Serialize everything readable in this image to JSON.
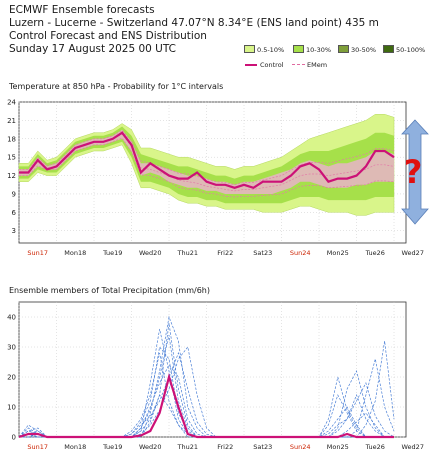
{
  "header": {
    "line1": "ECMWF Ensemble forecasts",
    "line2": "Luzern - Lucerne - Switzerland 47.07°N 8.34°E (ENS land point) 435 m",
    "line3": "Control Forecast and ENS Distribution",
    "line4": "Sunday 17 August 2025 00 UTC"
  },
  "legend": {
    "bands": [
      {
        "label": "0.5-10%",
        "color": "#d9f58a"
      },
      {
        "label": "10-30%",
        "color": "#a6e04a"
      },
      {
        "label": "30-50%",
        "color": "#7f9f3a"
      },
      {
        "label": "50-100%",
        "color": "#3f6a10"
      }
    ],
    "control": {
      "label": "Control",
      "color": "#cc1177"
    },
    "emem": {
      "label": "EMem",
      "color": "#e06aa0"
    }
  },
  "colors": {
    "control": "#cc1177",
    "temp_member": "#e37aa8",
    "precip_member": "#4a7fd6",
    "weekend": "#cc2200",
    "annotation_arrow": "#8fb0de",
    "annotation_q": "#e01010"
  },
  "chart_data": [
    {
      "type": "area",
      "title": "Temperature at 850 hPa - Probability for 1°C intervals",
      "ylim": [
        1,
        24
      ],
      "yticks": [
        3,
        6,
        9,
        12,
        15,
        18,
        21,
        24
      ],
      "xlim": [
        0,
        10
      ],
      "xticks": [
        {
          "x": 0.5,
          "label": "Sun17",
          "weekend": true
        },
        {
          "x": 1.5,
          "label": "Mon18",
          "weekend": false
        },
        {
          "x": 2.5,
          "label": "Tue19",
          "weekend": false
        },
        {
          "x": 3.5,
          "label": "Wed20",
          "weekend": false
        },
        {
          "x": 4.5,
          "label": "Thu21",
          "weekend": false
        },
        {
          "x": 5.5,
          "label": "Fri22",
          "weekend": false
        },
        {
          "x": 6.5,
          "label": "Sat23",
          "weekend": false
        },
        {
          "x": 7.5,
          "label": "Sun24",
          "weekend": true
        },
        {
          "x": 8.5,
          "label": "Mon25",
          "weekend": false
        },
        {
          "x": 9.5,
          "label": "Tue26",
          "weekend": false
        },
        {
          "x": 10.5,
          "label": "Wed27",
          "weekend": false
        }
      ],
      "x": [
        0,
        0.25,
        0.5,
        0.75,
        1,
        1.25,
        1.5,
        1.75,
        2,
        2.25,
        2.5,
        2.75,
        3,
        3.25,
        3.5,
        3.75,
        4,
        4.25,
        4.5,
        4.75,
        5,
        5.25,
        5.5,
        5.75,
        6,
        6.25,
        6.5,
        6.75,
        7,
        7.25,
        7.5,
        7.75,
        8,
        8.25,
        8.5,
        8.75,
        9,
        9.25,
        9.5,
        9.75,
        10
      ],
      "control": [
        12.5,
        12.5,
        14.5,
        13,
        13.5,
        15,
        16.5,
        17,
        17.5,
        17.5,
        18,
        19,
        17,
        12.5,
        14,
        13,
        12,
        11.5,
        11.5,
        12.5,
        11,
        10.5,
        10.5,
        10,
        10.5,
        10,
        11,
        11,
        11,
        12,
        13.5,
        14,
        13,
        11,
        11.5,
        11.5,
        12,
        13.5,
        16,
        16,
        15
      ],
      "band_outer_low": [
        11,
        11,
        12.5,
        12,
        12,
        13.5,
        15,
        15.5,
        16,
        16,
        16.5,
        17,
        14,
        10,
        10,
        9.5,
        9,
        8,
        7.5,
        7.5,
        7,
        7,
        6.5,
        6.5,
        6.5,
        6.5,
        6,
        6,
        6,
        6.5,
        7,
        7,
        6.5,
        6,
        6,
        6,
        5.5,
        5.5,
        6,
        6,
        6
      ],
      "band_outer_high": [
        14,
        14,
        16,
        14.5,
        15,
        16.5,
        18,
        18.5,
        19,
        19,
        19.5,
        20.5,
        19.5,
        16.5,
        16.5,
        16,
        15.5,
        15,
        15,
        14.5,
        14,
        13.5,
        13.5,
        13,
        13.5,
        13.5,
        14,
        14.5,
        15,
        16,
        17,
        18,
        18.5,
        19,
        19.5,
        20,
        20.5,
        21,
        22,
        22,
        21.5
      ],
      "band_mid_low": [
        11.5,
        11.5,
        13,
        12.5,
        12.5,
        14,
        15.5,
        16,
        16.5,
        16.5,
        17,
        17.5,
        15,
        11,
        11,
        10.5,
        10,
        9,
        8.5,
        8.5,
        8,
        8,
        7.5,
        7.5,
        7.5,
        7.5,
        7.5,
        7.5,
        7.5,
        8,
        8.5,
        8.5,
        8.5,
        8,
        8,
        8,
        8,
        8,
        8.5,
        8.5,
        8.5
      ],
      "band_mid_high": [
        13.5,
        13.5,
        15.5,
        14,
        14.5,
        16,
        17.5,
        18,
        18.5,
        18.5,
        19,
        20,
        18.5,
        15.5,
        15,
        14.5,
        14,
        13.5,
        13.5,
        13,
        12.5,
        12,
        12,
        11.5,
        12,
        12,
        12.5,
        13,
        13.5,
        14.5,
        15.5,
        16,
        16,
        16,
        16.5,
        17,
        17.5,
        18,
        19,
        19,
        18.5
      ],
      "band_core_low": [
        12,
        12,
        13.5,
        13,
        13,
        14.5,
        16,
        16.5,
        17,
        17,
        17.5,
        18,
        16,
        12,
        12.5,
        12,
        11,
        10.5,
        10,
        10,
        9.5,
        9.5,
        9,
        9,
        9,
        9,
        9,
        9,
        9.5,
        10,
        11,
        11,
        10.5,
        10,
        10,
        10,
        10.5,
        10.5,
        11,
        11,
        11
      ],
      "band_core_high": [
        13,
        13,
        15,
        13.5,
        14,
        15.5,
        17,
        17.5,
        18,
        18,
        18.5,
        19.5,
        17.5,
        14,
        14,
        13.5,
        13,
        12.5,
        12,
        12,
        11.5,
        11,
        11,
        10.5,
        11,
        11,
        11.5,
        12,
        12.5,
        13,
        14,
        14.5,
        14,
        13.5,
        14,
        14,
        14.5,
        15,
        16,
        16,
        15.5
      ]
    },
    {
      "type": "line",
      "title": "Ensemble members of Total Precipitation (mm/6h)",
      "ylim": [
        0,
        45
      ],
      "yticks": [
        0,
        10,
        20,
        30,
        40
      ],
      "xlim": [
        0,
        10
      ],
      "xticks": [
        {
          "x": 0.5,
          "label": "Sun17",
          "weekend": true
        },
        {
          "x": 1.5,
          "label": "Mon18",
          "weekend": false
        },
        {
          "x": 2.5,
          "label": "Tue19",
          "weekend": false
        },
        {
          "x": 3.5,
          "label": "Wed20",
          "weekend": false
        },
        {
          "x": 4.5,
          "label": "Thu21",
          "weekend": false
        },
        {
          "x": 5.5,
          "label": "Fri22",
          "weekend": false
        },
        {
          "x": 6.5,
          "label": "Sat23",
          "weekend": false
        },
        {
          "x": 7.5,
          "label": "Sun24",
          "weekend": true
        },
        {
          "x": 8.5,
          "label": "Mon25",
          "weekend": false
        },
        {
          "x": 9.5,
          "label": "Tue26",
          "weekend": false
        },
        {
          "x": 10.5,
          "label": "Wed27",
          "weekend": false
        }
      ],
      "x": [
        0,
        0.25,
        0.5,
        0.75,
        1,
        1.25,
        1.5,
        1.75,
        2,
        2.25,
        2.5,
        2.75,
        3,
        3.25,
        3.5,
        3.75,
        4,
        4.25,
        4.5,
        4.75,
        5,
        5.25,
        5.5,
        5.75,
        6,
        6.25,
        6.5,
        6.75,
        7,
        7.25,
        7.5,
        7.75,
        8,
        8.25,
        8.5,
        8.75,
        9,
        9.25,
        9.5,
        9.75,
        10
      ],
      "control": [
        0,
        1,
        1,
        0,
        0,
        0,
        0,
        0,
        0,
        0,
        0,
        0,
        0,
        0.5,
        2,
        8,
        20,
        10,
        1,
        0,
        0,
        0,
        0,
        0,
        0,
        0,
        0,
        0,
        0,
        0,
        0,
        0,
        0,
        0,
        0,
        1,
        0,
        0,
        0,
        0,
        0
      ],
      "members": [
        [
          0,
          4,
          2,
          0,
          0,
          0,
          0,
          0,
          0,
          0,
          0,
          0,
          0,
          2,
          6,
          14,
          38,
          16,
          4,
          0,
          0,
          0,
          0,
          0,
          0,
          0,
          0,
          0,
          0,
          0,
          0,
          0,
          0,
          0,
          0,
          0,
          0,
          0,
          0,
          0,
          0
        ],
        [
          0,
          2,
          3,
          0,
          0,
          0,
          0,
          0,
          0,
          0,
          0,
          0,
          1,
          5,
          12,
          30,
          26,
          8,
          2,
          0,
          0,
          0,
          0,
          0,
          0,
          0,
          0,
          0,
          0,
          0,
          0,
          0,
          0,
          2,
          6,
          10,
          4,
          0,
          0,
          0,
          0
        ],
        [
          0,
          1,
          0,
          0,
          0,
          0,
          0,
          0,
          0,
          0,
          0,
          0,
          0,
          0,
          8,
          22,
          40,
          32,
          10,
          3,
          0,
          0,
          0,
          0,
          0,
          0,
          0,
          0,
          0,
          0,
          0,
          0,
          0,
          0,
          0,
          0,
          0,
          4,
          12,
          32,
          6
        ],
        [
          0,
          0,
          1,
          0,
          0,
          0,
          0,
          0,
          0,
          0,
          0,
          0,
          0,
          3,
          10,
          18,
          24,
          20,
          6,
          1,
          0,
          0,
          0,
          0,
          0,
          0,
          0,
          0,
          0,
          0,
          0,
          0,
          0,
          4,
          14,
          8,
          2,
          0,
          0,
          0,
          0
        ],
        [
          0,
          2,
          1,
          0,
          0,
          0,
          0,
          0,
          0,
          0,
          0,
          0,
          2,
          6,
          14,
          28,
          12,
          4,
          0,
          0,
          0,
          0,
          0,
          0,
          0,
          0,
          0,
          0,
          0,
          0,
          0,
          0,
          0,
          0,
          3,
          16,
          22,
          10,
          3,
          0,
          0
        ],
        [
          0,
          0,
          0,
          0,
          0,
          0,
          0,
          0,
          0,
          0,
          0,
          0,
          0,
          1,
          4,
          9,
          16,
          26,
          30,
          14,
          3,
          0,
          0,
          0,
          0,
          0,
          0,
          0,
          0,
          0,
          0,
          0,
          0,
          1,
          4,
          6,
          12,
          18,
          7,
          2,
          0
        ],
        [
          0,
          1,
          2,
          0,
          0,
          0,
          0,
          0,
          0,
          0,
          0,
          0,
          0,
          2,
          18,
          36,
          22,
          6,
          1,
          0,
          0,
          0,
          0,
          0,
          0,
          0,
          0,
          0,
          0,
          0,
          0,
          0,
          0,
          0,
          0,
          2,
          5,
          8,
          4,
          0,
          0
        ],
        [
          0,
          0,
          1,
          0,
          0,
          0,
          0,
          0,
          0,
          0,
          0,
          0,
          1,
          4,
          7,
          12,
          20,
          28,
          16,
          5,
          1,
          0,
          0,
          0,
          0,
          0,
          0,
          0,
          0,
          0,
          0,
          0,
          0,
          6,
          20,
          9,
          3,
          0,
          0,
          0,
          0
        ],
        [
          0,
          1,
          0,
          0,
          0,
          0,
          0,
          0,
          0,
          0,
          0,
          0,
          0,
          0,
          5,
          14,
          10,
          4,
          1,
          0,
          0,
          0,
          0,
          0,
          0,
          0,
          0,
          0,
          0,
          0,
          0,
          0,
          0,
          0,
          0,
          0,
          2,
          14,
          26,
          10,
          2
        ],
        [
          0,
          3,
          1,
          0,
          0,
          0,
          0,
          0,
          0,
          0,
          0,
          0,
          0,
          3,
          9,
          20,
          34,
          12,
          3,
          0,
          0,
          0,
          0,
          0,
          0,
          0,
          0,
          0,
          0,
          0,
          0,
          0,
          0,
          0,
          2,
          6,
          14,
          6,
          2,
          0,
          0
        ]
      ]
    }
  ]
}
